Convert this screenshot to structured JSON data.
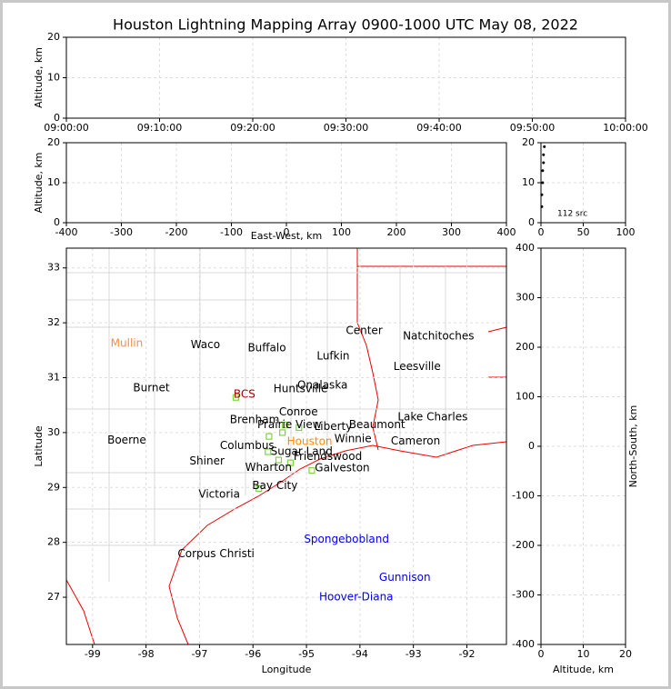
{
  "chart_data": [
    {
      "type": "line",
      "title": "Houston Lightning Mapping Array 0900-1000 UTC May 08, 2022",
      "ylabel": "Altitude, km",
      "ylim": [
        0,
        20
      ],
      "yticks": [
        0,
        10,
        20
      ],
      "xticks": [
        "09:00:00",
        "09:10:00",
        "09:20:00",
        "09:30:00",
        "09:40:00",
        "09:50:00",
        "10:00:00"
      ],
      "grid": true
    },
    {
      "type": "scatter",
      "xlabel": "East-West, km",
      "ylabel": "Altitude, km",
      "xlim": [
        -400,
        400
      ],
      "xticks": [
        -400,
        -300,
        -200,
        -100,
        0,
        100,
        200,
        300,
        400
      ],
      "ylim": [
        0,
        20
      ],
      "yticks": [
        0,
        10,
        20
      ],
      "grid": true
    },
    {
      "type": "histogram",
      "annotation": "112 src",
      "color": "#000000",
      "x": [
        1,
        1,
        2,
        2,
        3,
        3,
        4
      ],
      "values": [
        4,
        7,
        10,
        13,
        15,
        17,
        19
      ],
      "xlim": [
        0,
        100
      ],
      "xticks": [
        0,
        50,
        100
      ],
      "ylim": [
        0,
        20
      ],
      "yticks": [
        0,
        10,
        20
      ],
      "grid": true
    },
    {
      "type": "map",
      "xlabel": "Longitude",
      "ylabel": "Latitude",
      "xlim": [
        -99.49,
        -91.26
      ],
      "xticks": [
        -99,
        -98,
        -97,
        -96,
        -95,
        -94,
        -93,
        -92
      ],
      "ylim": [
        26.14,
        33.36
      ],
      "yticks": [
        27,
        28,
        29,
        30,
        31,
        32,
        33
      ],
      "grid": true,
      "stations": {
        "color": "#7fd63c",
        "lon": [
          -96.32,
          -95.4,
          -95.14,
          -95.45,
          -95.7,
          -95.72,
          -95.52,
          -95.3,
          -94.9,
          -95.89
        ],
        "lat": [
          30.64,
          30.14,
          30.09,
          30.0,
          29.93,
          29.65,
          29.5,
          29.45,
          29.31,
          28.98
        ]
      },
      "cities": [
        {
          "name": "Mullin",
          "lon": -98.36,
          "lat": 31.62,
          "color": "#ff8c42"
        },
        {
          "name": "Waco",
          "lon": -96.89,
          "lat": 31.6,
          "color": "#000000"
        },
        {
          "name": "Buffalo",
          "lon": -95.74,
          "lat": 31.54,
          "color": "#000000"
        },
        {
          "name": "Center",
          "lon": -93.92,
          "lat": 31.85,
          "color": "#000000"
        },
        {
          "name": "Natchitoches",
          "lon": -92.53,
          "lat": 31.75,
          "color": "#000000"
        },
        {
          "name": "Lufkin",
          "lon": -94.5,
          "lat": 31.39,
          "color": "#000000"
        },
        {
          "name": "Leesville",
          "lon": -92.93,
          "lat": 31.2,
          "color": "#000000"
        },
        {
          "name": "Burnet",
          "lon": -97.9,
          "lat": 30.81,
          "color": "#000000"
        },
        {
          "name": "BCS",
          "lon": -96.16,
          "lat": 30.69,
          "color": "#a00000"
        },
        {
          "name": "Huntsville",
          "lon": -95.11,
          "lat": 30.79,
          "color": "#000000"
        },
        {
          "name": "Onalaska",
          "lon": -94.7,
          "lat": 30.86,
          "color": "#000000"
        },
        {
          "name": "Conroe",
          "lon": -95.15,
          "lat": 30.37,
          "color": "#000000"
        },
        {
          "name": "Lake Charles",
          "lon": -92.64,
          "lat": 30.28,
          "color": "#000000"
        },
        {
          "name": "Brenham",
          "lon": -95.97,
          "lat": 30.23,
          "color": "#000000"
        },
        {
          "name": "Prairie View",
          "lon": -95.32,
          "lat": 30.14,
          "color": "#000000"
        },
        {
          "name": "Liberty",
          "lon": -94.5,
          "lat": 30.11,
          "color": "#000000"
        },
        {
          "name": "Beaumont",
          "lon": -93.68,
          "lat": 30.14,
          "color": "#000000"
        },
        {
          "name": "Winnie",
          "lon": -94.13,
          "lat": 29.88,
          "color": "#000000"
        },
        {
          "name": "Boerne",
          "lon": -98.36,
          "lat": 29.86,
          "color": "#000000"
        },
        {
          "name": "Cameron",
          "lon": -92.96,
          "lat": 29.84,
          "color": "#000000"
        },
        {
          "name": "Columbus",
          "lon": -96.11,
          "lat": 29.76,
          "color": "#000000"
        },
        {
          "name": "Houston",
          "lon": -94.94,
          "lat": 29.83,
          "color": "#ff8c00"
        },
        {
          "name": "Sugar Land",
          "lon": -95.09,
          "lat": 29.65,
          "color": "#000000"
        },
        {
          "name": "Friendswood",
          "lon": -94.6,
          "lat": 29.56,
          "color": "#000000"
        },
        {
          "name": "Shiner",
          "lon": -96.86,
          "lat": 29.48,
          "color": "#000000"
        },
        {
          "name": "Wharton",
          "lon": -95.71,
          "lat": 29.36,
          "color": "#000000"
        },
        {
          "name": "Galveston",
          "lon": -94.33,
          "lat": 29.35,
          "color": "#000000"
        },
        {
          "name": "Bay City",
          "lon": -95.59,
          "lat": 29.03,
          "color": "#000000"
        },
        {
          "name": "Victoria",
          "lon": -96.63,
          "lat": 28.87,
          "color": "#000000"
        },
        {
          "name": "Spongebobland",
          "lon": -94.25,
          "lat": 28.05,
          "color": "#0000ee"
        },
        {
          "name": "Corpus Christi",
          "lon": -96.69,
          "lat": 27.79,
          "color": "#000000"
        },
        {
          "name": "Gunnison",
          "lon": -93.16,
          "lat": 27.36,
          "color": "#0000ee"
        },
        {
          "name": "Hoover-Diana",
          "lon": -94.07,
          "lat": 27.0,
          "color": "#0000ee"
        }
      ]
    },
    {
      "type": "scatter",
      "xlabel": "Altitude, km",
      "ylabel": "North-South, km",
      "xlim": [
        0,
        20
      ],
      "xticks": [
        0,
        10,
        20
      ],
      "ylim": [
        -400,
        400
      ],
      "yticks": [
        -400,
        -300,
        -200,
        -100,
        0,
        100,
        200,
        300,
        400
      ],
      "grid": true
    }
  ]
}
